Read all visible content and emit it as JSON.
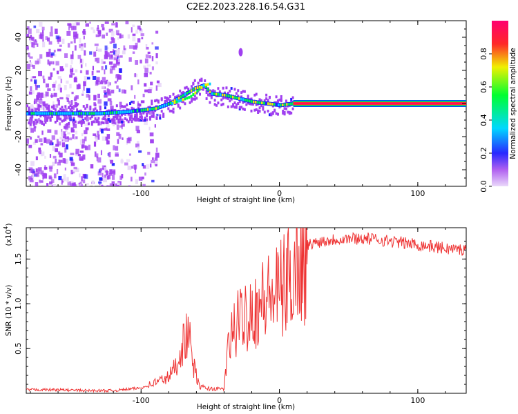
{
  "title": "C2E2.2023.228.16.54.G31",
  "chart_data": [
    {
      "type": "heatmap",
      "xlabel": "Height of straight line (km)",
      "ylabel": "Frequency (Hz)",
      "xlim": [
        -183,
        135
      ],
      "ylim": [
        -50,
        50
      ],
      "x_ticks": [
        -100,
        0,
        100
      ],
      "y_ticks": [
        -40,
        -20,
        0,
        20,
        40
      ],
      "colorbar": {
        "label": "Normalized spectral amplitude",
        "range": [
          0,
          1
        ],
        "ticks": [
          0.0,
          0.2,
          0.4,
          0.6,
          0.8
        ],
        "colors": [
          "#e8d8f8",
          "#a040f0",
          "#2020ff",
          "#00d0ff",
          "#00ff40",
          "#f0f000",
          "#ff2020",
          "#ff0070"
        ]
      },
      "ridge": {
        "x": [
          -183,
          -170,
          -150,
          -130,
          -110,
          -100,
          -90,
          -80,
          -70,
          -62,
          -55,
          -50,
          -40,
          -30,
          -20,
          -10,
          0,
          10,
          50,
          100,
          135
        ],
        "y": [
          -6,
          -6,
          -6,
          -6,
          -5,
          -4,
          -3,
          0,
          5,
          9,
          11,
          6,
          5,
          3,
          1,
          0,
          -1,
          0,
          0,
          0,
          0
        ]
      }
    },
    {
      "type": "line",
      "xlabel": "Height of straight line (km)",
      "ylabel": "SNR (10 * v/v)",
      "y_exponent_label": "(x10",
      "y_exponent": "4",
      "y_exponent_close": ")",
      "xlim": [
        -183,
        135
      ],
      "ylim": [
        0,
        1.85
      ],
      "x_ticks": [
        -100,
        0,
        100
      ],
      "y_ticks": [
        0.5,
        1.0,
        1.5
      ],
      "line_color": "#ee3333",
      "series": [
        {
          "x": [
            -183,
            -160,
            -140,
            -120,
            -100,
            -90,
            -80,
            -75,
            -70,
            -66,
            -62,
            -58,
            -54,
            -50,
            -45,
            -40,
            -37,
            -34,
            -30,
            -26,
            -22,
            -18,
            -14,
            -10,
            -5,
            0,
            5,
            10,
            15,
            20,
            25,
            30,
            40,
            50,
            60,
            70,
            80,
            90,
            100,
            110,
            120,
            135
          ],
          "values": [
            0.04,
            0.04,
            0.03,
            0.03,
            0.06,
            0.12,
            0.18,
            0.3,
            0.55,
            0.68,
            0.3,
            0.08,
            0.06,
            0.05,
            0.05,
            0.06,
            0.55,
            0.75,
            0.85,
            0.95,
            1.05,
            1.02,
            1.1,
            1.15,
            1.2,
            1.25,
            1.35,
            1.5,
            1.6,
            1.65,
            1.68,
            1.7,
            1.72,
            1.73,
            1.73,
            1.72,
            1.7,
            1.68,
            1.66,
            1.64,
            1.62,
            1.6
          ]
        }
      ]
    }
  ]
}
